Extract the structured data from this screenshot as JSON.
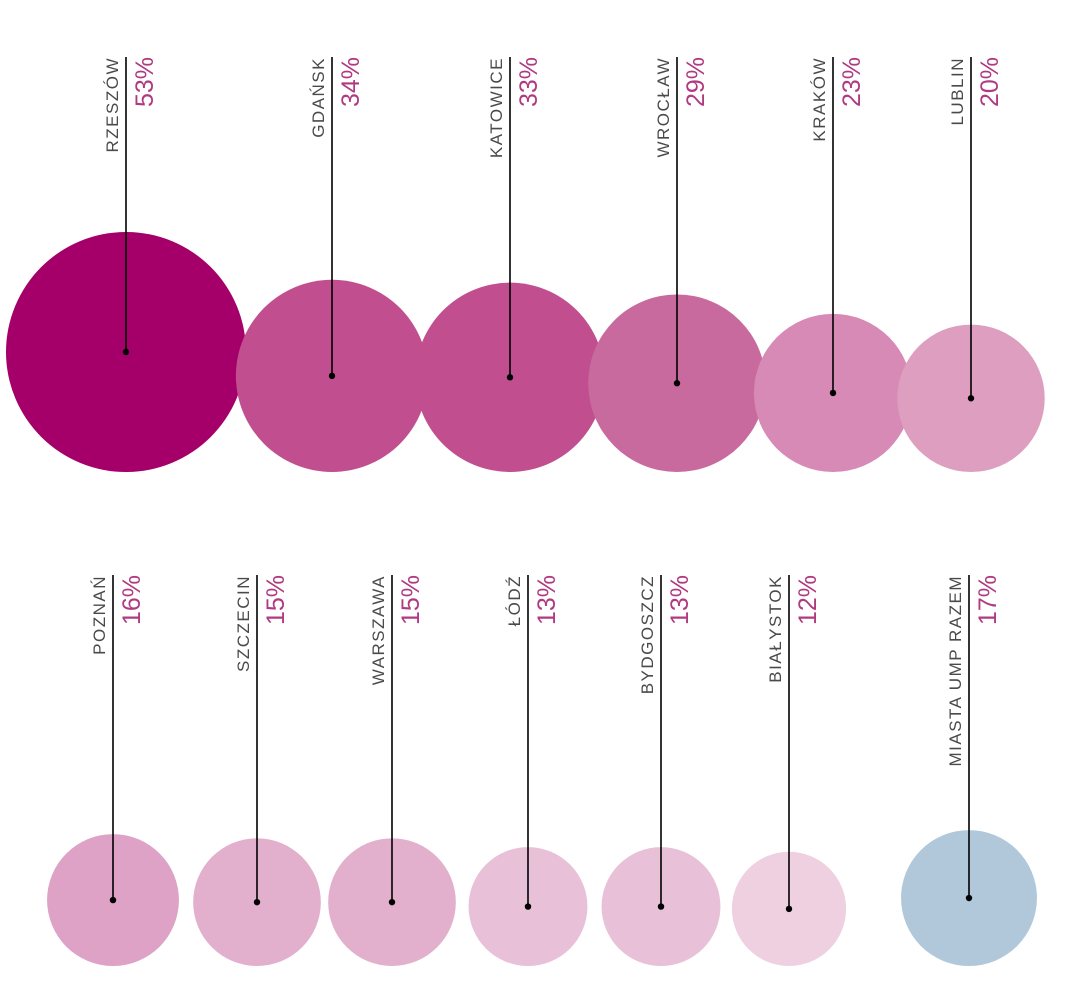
{
  "chart_data": {
    "type": "bubble",
    "title": "",
    "items": [
      {
        "city": "RZESZÓW",
        "value": 53,
        "label": "53%",
        "color": "#a5006a"
      },
      {
        "city": "GDAŃSK",
        "value": 34,
        "label": "34%",
        "color": "#c14f8f"
      },
      {
        "city": "KATOWICE",
        "value": 33,
        "label": "33%",
        "color": "#c14f8f"
      },
      {
        "city": "WROCŁAW",
        "value": 29,
        "label": "29%",
        "color": "#c96a9f"
      },
      {
        "city": "KRAKÓW",
        "value": 23,
        "label": "23%",
        "color": "#d78ab5"
      },
      {
        "city": "LUBLIN",
        "value": 20,
        "label": "20%",
        "color": "#dd9ebf"
      },
      {
        "city": "POZNAŃ",
        "value": 16,
        "label": "16%",
        "color": "#dda2c5"
      },
      {
        "city": "SZCZECIN",
        "value": 15,
        "label": "15%",
        "color": "#e2b0cd"
      },
      {
        "city": "WARSZAWA",
        "value": 15,
        "label": "15%",
        "color": "#e2b0cd"
      },
      {
        "city": "ŁÓDŹ",
        "value": 13,
        "label": "13%",
        "color": "#e8c0d7"
      },
      {
        "city": "BYDGOSZCZ",
        "value": 13,
        "label": "13%",
        "color": "#e8c0d7"
      },
      {
        "city": "BIAŁYSTOK",
        "value": 12,
        "label": "12%",
        "color": "#efd0e1"
      },
      {
        "city": "MIASTA UMP RAZEM",
        "value": 17,
        "label": "17%",
        "color": "#b1c7da"
      }
    ]
  }
}
